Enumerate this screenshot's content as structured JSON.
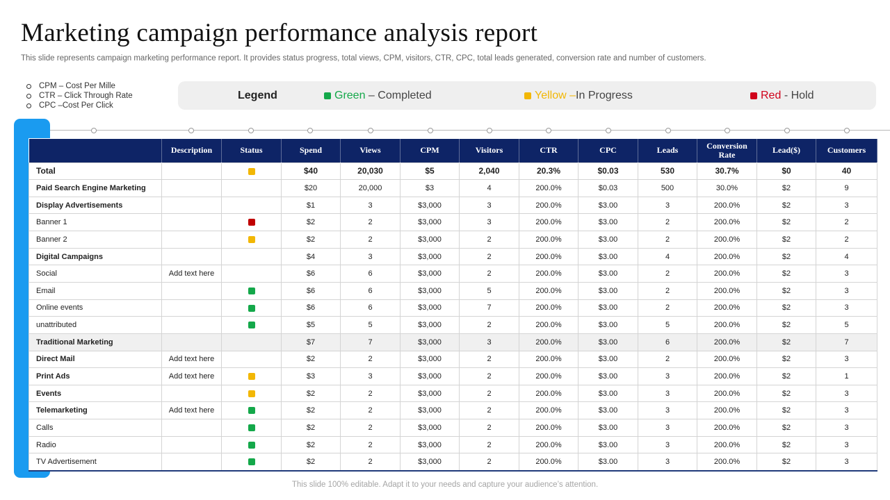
{
  "title": "Marketing campaign performance analysis report",
  "subtitle": "This slide represents campaign marketing performance report. It provides status progress, total views, CPM, visitors, CTR, CPC, total leads generated, conversion rate and number of customers.",
  "abbreviations": [
    "CPM – Cost Per Mille",
    "CTR – Click Through Rate",
    "CPC –Cost Per Click"
  ],
  "legend": {
    "heading": "Legend",
    "items": [
      {
        "color_name": "Green",
        "sep": "–",
        "meaning": "Completed",
        "color": "#14a84a"
      },
      {
        "color_name": "Yellow",
        "sep": "–",
        "meaning": "In Progress",
        "color": "#f2b705"
      },
      {
        "color_name": "Red",
        "sep": "-",
        "meaning": "Hold",
        "color": "#d0021b"
      }
    ]
  },
  "status_colors": {
    "green": "#14a84a",
    "yellow": "#f2b705",
    "red": "#c00000"
  },
  "table": {
    "columns": [
      "",
      "Description",
      "Status",
      "Spend",
      "Views",
      "CPM",
      "Visitors",
      "CTR",
      "CPC",
      "Leads",
      "Conversion Rate",
      "Lead($)",
      "Customers"
    ],
    "rows": [
      {
        "name": "Total",
        "desc": "",
        "status": "yellow",
        "spend": "$40",
        "views": "20,030",
        "cpm": "$5",
        "visitors": "2,040",
        "ctr": "20.3%",
        "cpc": "$0.03",
        "leads": "530",
        "conv": "30.7%",
        "lead_d": "$0",
        "customers": "40",
        "style": "total"
      },
      {
        "name": "Paid Search Engine Marketing",
        "desc": "",
        "status": "",
        "spend": "$20",
        "views": "20,000",
        "cpm": "$3",
        "visitors": "4",
        "ctr": "200.0%",
        "cpc": "$0.03",
        "leads": "500",
        "conv": "30.0%",
        "lead_d": "$2",
        "customers": "9",
        "style": "bold"
      },
      {
        "name": "Display Advertisements",
        "desc": "",
        "status": "",
        "spend": "$1",
        "views": "3",
        "cpm": "$3,000",
        "visitors": "3",
        "ctr": "200.0%",
        "cpc": "$3.00",
        "leads": "3",
        "conv": "200.0%",
        "lead_d": "$2",
        "customers": "3",
        "style": "bold"
      },
      {
        "name": "Banner 1",
        "desc": "",
        "status": "red",
        "spend": "$2",
        "views": "2",
        "cpm": "$3,000",
        "visitors": "3",
        "ctr": "200.0%",
        "cpc": "$3.00",
        "leads": "2",
        "conv": "200.0%",
        "lead_d": "$2",
        "customers": "2",
        "style": ""
      },
      {
        "name": "Banner 2",
        "desc": "",
        "status": "yellow",
        "spend": "$2",
        "views": "2",
        "cpm": "$3,000",
        "visitors": "2",
        "ctr": "200.0%",
        "cpc": "$3.00",
        "leads": "2",
        "conv": "200.0%",
        "lead_d": "$2",
        "customers": "2",
        "style": ""
      },
      {
        "name": "Digital Campaigns",
        "desc": "",
        "status": "",
        "spend": "$4",
        "views": "3",
        "cpm": "$3,000",
        "visitors": "2",
        "ctr": "200.0%",
        "cpc": "$3.00",
        "leads": "4",
        "conv": "200.0%",
        "lead_d": "$2",
        "customers": "4",
        "style": "bold"
      },
      {
        "name": "Social",
        "desc": "Add text here",
        "status": "",
        "spend": "$6",
        "views": "6",
        "cpm": "$3,000",
        "visitors": "2",
        "ctr": "200.0%",
        "cpc": "$3.00",
        "leads": "2",
        "conv": "200.0%",
        "lead_d": "$2",
        "customers": "3",
        "style": ""
      },
      {
        "name": "Email",
        "desc": "",
        "status": "green",
        "spend": "$6",
        "views": "6",
        "cpm": "$3,000",
        "visitors": "5",
        "ctr": "200.0%",
        "cpc": "$3.00",
        "leads": "2",
        "conv": "200.0%",
        "lead_d": "$2",
        "customers": "3",
        "style": ""
      },
      {
        "name": "Online events",
        "desc": "",
        "status": "green",
        "spend": "$6",
        "views": "6",
        "cpm": "$3,000",
        "visitors": "7",
        "ctr": "200.0%",
        "cpc": "$3.00",
        "leads": "2",
        "conv": "200.0%",
        "lead_d": "$2",
        "customers": "3",
        "style": ""
      },
      {
        "name": "unattributed",
        "desc": "",
        "status": "green",
        "spend": "$5",
        "views": "5",
        "cpm": "$3,000",
        "visitors": "2",
        "ctr": "200.0%",
        "cpc": "$3.00",
        "leads": "5",
        "conv": "200.0%",
        "lead_d": "$2",
        "customers": "5",
        "style": ""
      },
      {
        "name": "Traditional Marketing",
        "desc": "",
        "status": "",
        "spend": "$7",
        "views": "7",
        "cpm": "$3,000",
        "visitors": "3",
        "ctr": "200.0%",
        "cpc": "$3.00",
        "leads": "6",
        "conv": "200.0%",
        "lead_d": "$2",
        "customers": "7",
        "style": "bold shaded"
      },
      {
        "name": "Direct Mail",
        "desc": "Add text here",
        "status": "",
        "spend": "$2",
        "views": "2",
        "cpm": "$3,000",
        "visitors": "2",
        "ctr": "200.0%",
        "cpc": "$3.00",
        "leads": "2",
        "conv": "200.0%",
        "lead_d": "$2",
        "customers": "3",
        "style": "bold"
      },
      {
        "name": "Print Ads",
        "desc": "Add text here",
        "status": "yellow",
        "spend": "$3",
        "views": "3",
        "cpm": "$3,000",
        "visitors": "2",
        "ctr": "200.0%",
        "cpc": "$3.00",
        "leads": "3",
        "conv": "200.0%",
        "lead_d": "$2",
        "customers": "1",
        "style": "bold"
      },
      {
        "name": "Events",
        "desc": "",
        "status": "yellow",
        "spend": "$2",
        "views": "2",
        "cpm": "$3,000",
        "visitors": "2",
        "ctr": "200.0%",
        "cpc": "$3.00",
        "leads": "3",
        "conv": "200.0%",
        "lead_d": "$2",
        "customers": "3",
        "style": "bold"
      },
      {
        "name": "Telemarketing",
        "desc": "Add text here",
        "status": "green",
        "spend": "$2",
        "views": "2",
        "cpm": "$3,000",
        "visitors": "2",
        "ctr": "200.0%",
        "cpc": "$3.00",
        "leads": "3",
        "conv": "200.0%",
        "lead_d": "$2",
        "customers": "3",
        "style": "bold"
      },
      {
        "name": "Calls",
        "desc": "",
        "status": "green",
        "spend": "$2",
        "views": "2",
        "cpm": "$3,000",
        "visitors": "2",
        "ctr": "200.0%",
        "cpc": "$3.00",
        "leads": "3",
        "conv": "200.0%",
        "lead_d": "$2",
        "customers": "3",
        "style": ""
      },
      {
        "name": "Radio",
        "desc": "",
        "status": "green",
        "spend": "$2",
        "views": "2",
        "cpm": "$3,000",
        "visitors": "2",
        "ctr": "200.0%",
        "cpc": "$3.00",
        "leads": "3",
        "conv": "200.0%",
        "lead_d": "$2",
        "customers": "3",
        "style": ""
      },
      {
        "name": "TV Advertisement",
        "desc": "",
        "status": "green",
        "spend": "$2",
        "views": "2",
        "cpm": "$3,000",
        "visitors": "2",
        "ctr": "200.0%",
        "cpc": "$3.00",
        "leads": "3",
        "conv": "200.0%",
        "lead_d": "$2",
        "customers": "3",
        "style": ""
      }
    ]
  },
  "footer": "This slide 100% editable. Adapt it to your needs and capture your audience’s attention."
}
